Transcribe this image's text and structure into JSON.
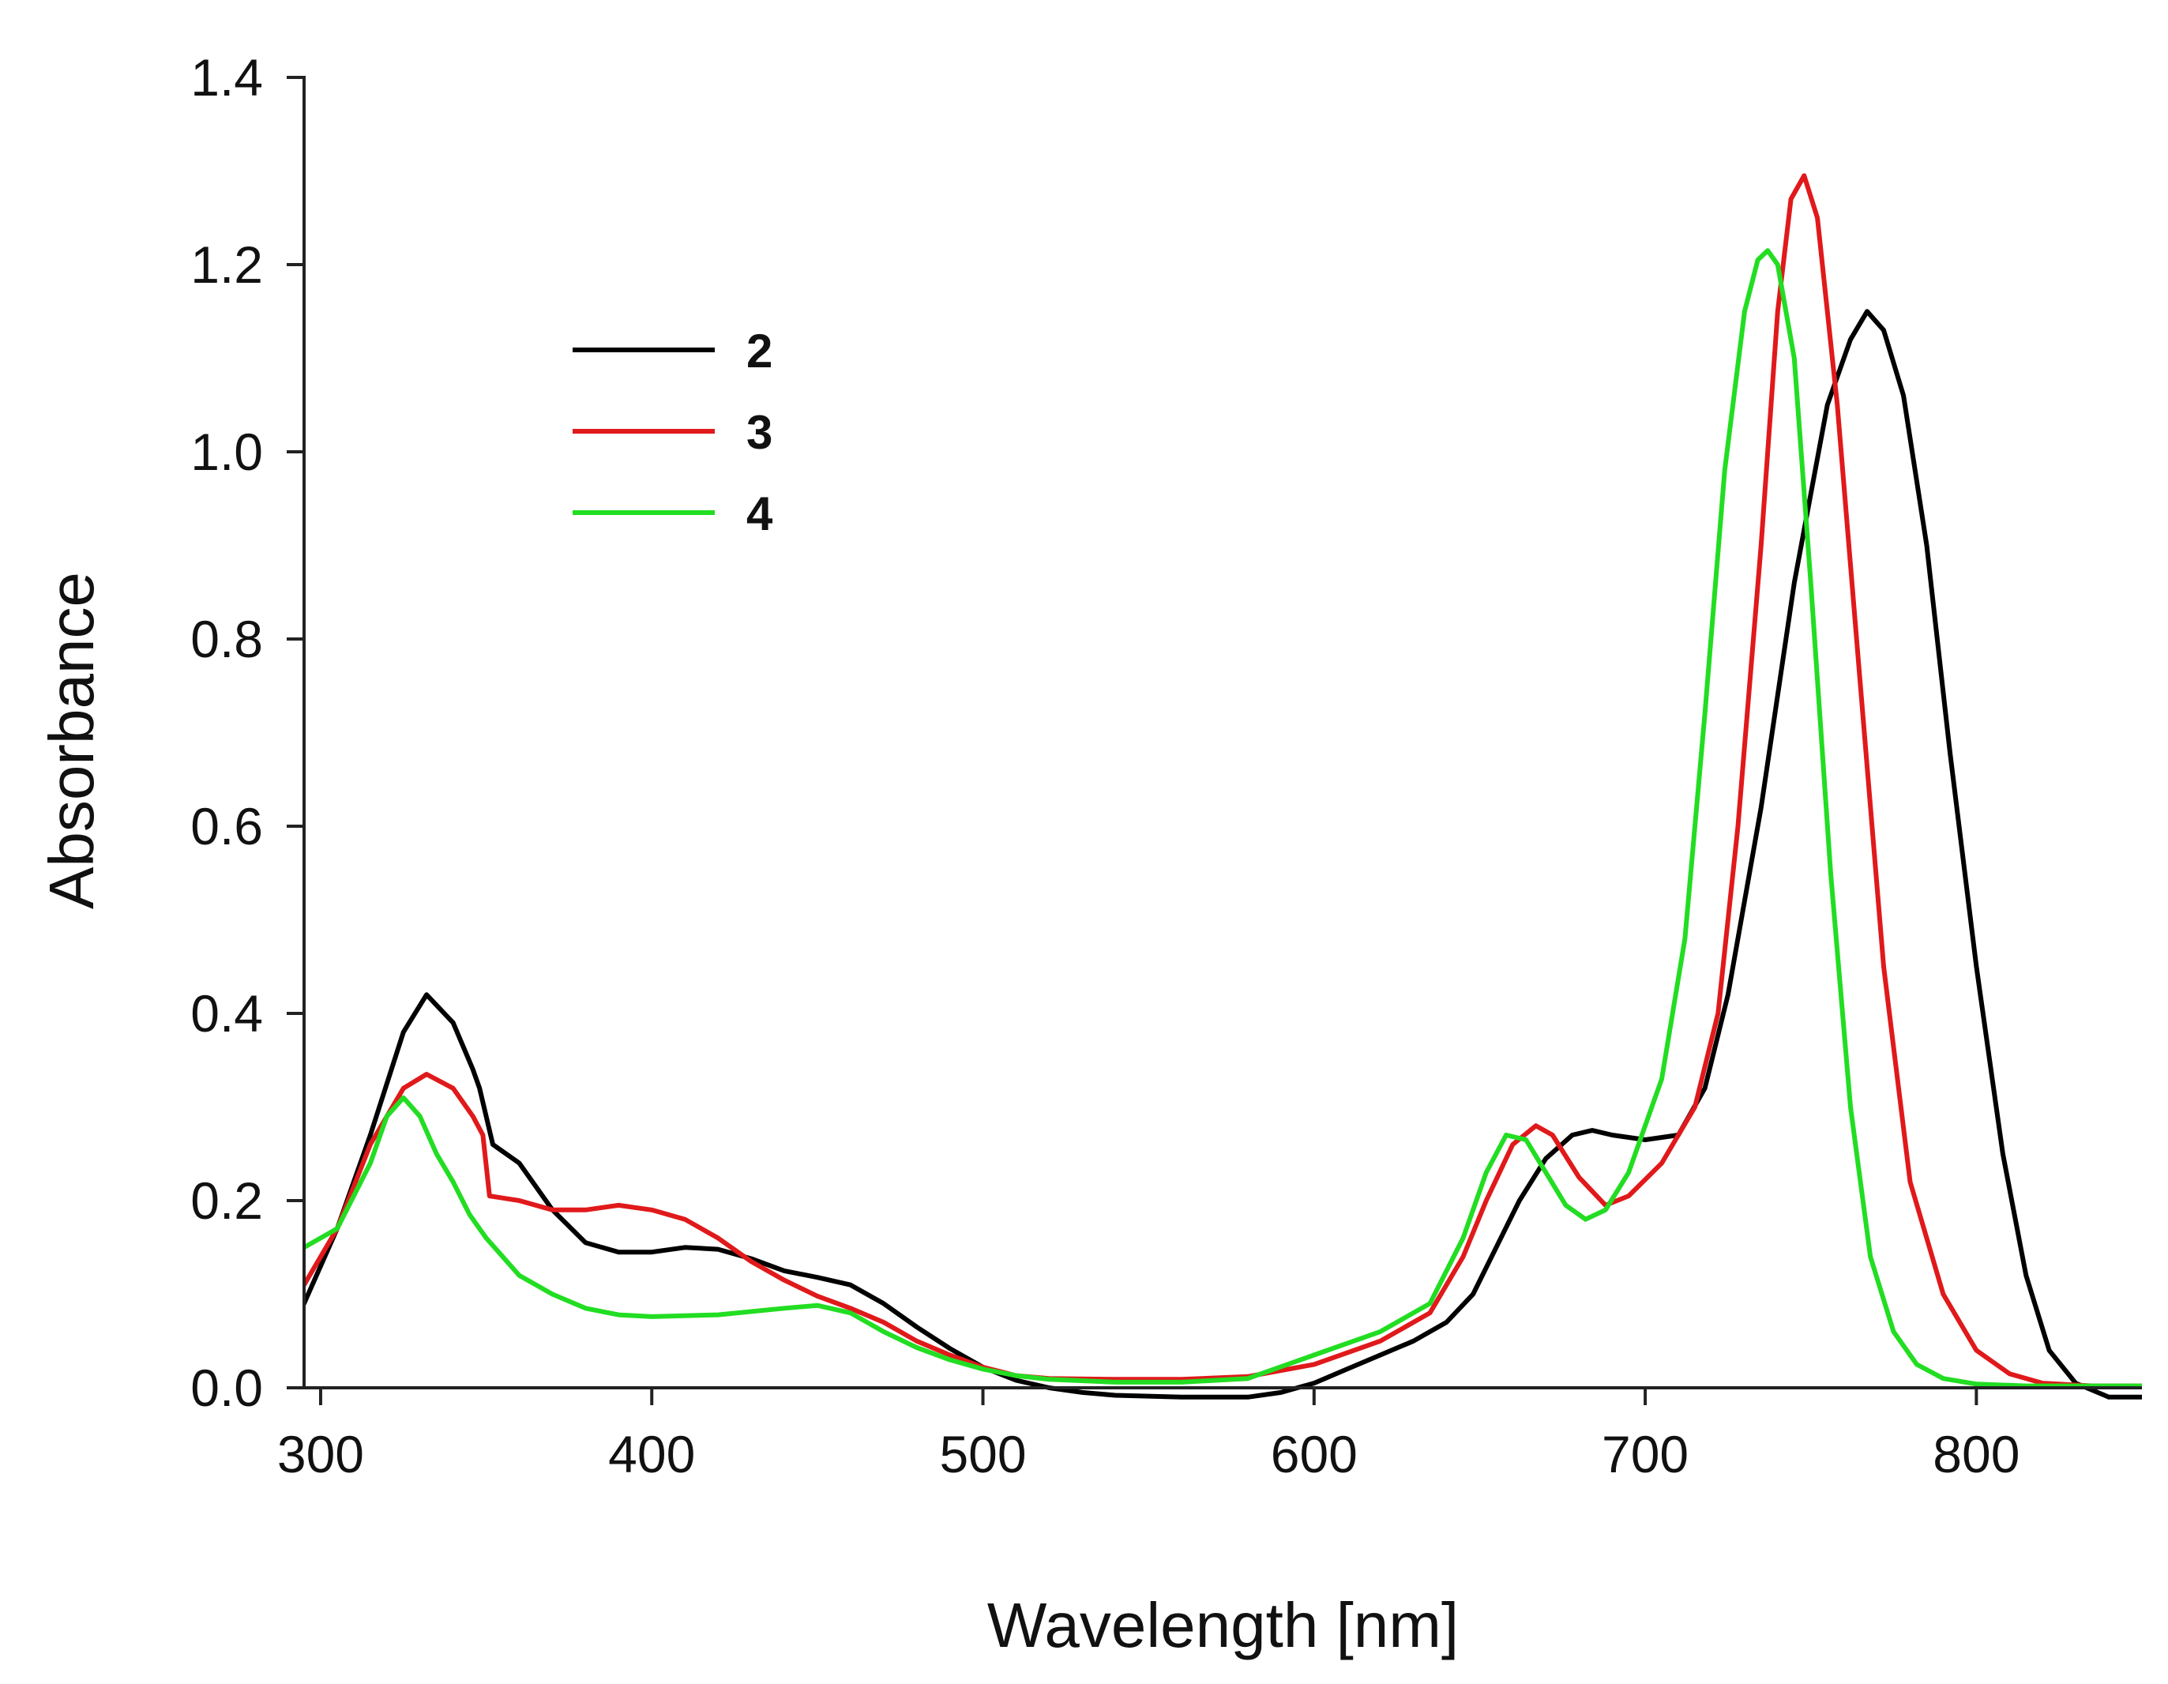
{
  "chart_data": {
    "type": "line",
    "title": "",
    "xlabel": "Wavelength [nm]",
    "ylabel": "Absorbance",
    "xlim": [
      295,
      850
    ],
    "ylim": [
      0.0,
      1.4
    ],
    "x_ticks": [
      300,
      400,
      500,
      600,
      700,
      800
    ],
    "x_tick_labels": [
      "300",
      "400",
      "500",
      "600",
      "700",
      "800"
    ],
    "y_ticks": [
      0.0,
      0.2,
      0.4,
      0.6,
      0.8,
      1.0,
      1.2,
      1.4
    ],
    "y_tick_labels": [
      "0.0",
      "0.2",
      "0.4",
      "0.6",
      "0.8",
      "1.0",
      "1.2",
      "1.4"
    ],
    "grid": false,
    "legend_position": "upper-left",
    "series": [
      {
        "name": "2",
        "color": "#000000",
        "x": [
          295,
          305,
          315,
          325,
          332,
          340,
          346,
          348,
          352,
          360,
          370,
          380,
          390,
          400,
          410,
          420,
          430,
          440,
          450,
          460,
          470,
          480,
          490,
          500,
          510,
          520,
          530,
          540,
          560,
          580,
          590,
          600,
          610,
          620,
          630,
          640,
          648,
          655,
          662,
          670,
          678,
          684,
          690,
          700,
          710,
          718,
          725,
          735,
          745,
          755,
          762,
          767,
          772,
          778,
          785,
          792,
          800,
          808,
          815,
          822,
          830,
          840,
          850
        ],
        "values": [
          0.09,
          0.17,
          0.27,
          0.38,
          0.42,
          0.39,
          0.34,
          0.32,
          0.26,
          0.24,
          0.19,
          0.155,
          0.145,
          0.145,
          0.15,
          0.148,
          0.138,
          0.125,
          0.118,
          0.11,
          0.09,
          0.065,
          0.042,
          0.022,
          0.008,
          0.0,
          -0.005,
          -0.008,
          -0.01,
          -0.01,
          -0.005,
          0.005,
          0.02,
          0.035,
          0.05,
          0.07,
          0.1,
          0.15,
          0.2,
          0.245,
          0.27,
          0.275,
          0.27,
          0.265,
          0.27,
          0.32,
          0.42,
          0.62,
          0.86,
          1.05,
          1.12,
          1.15,
          1.13,
          1.06,
          0.9,
          0.68,
          0.45,
          0.25,
          0.12,
          0.04,
          0.005,
          -0.01,
          -0.01
        ]
      },
      {
        "name": "3",
        "color": "#e0191b",
        "x": [
          295,
          305,
          315,
          325,
          332,
          340,
          346,
          349,
          351,
          360,
          370,
          380,
          390,
          400,
          410,
          420,
          430,
          440,
          450,
          460,
          470,
          480,
          490,
          500,
          510,
          520,
          540,
          560,
          580,
          600,
          620,
          635,
          645,
          652,
          660,
          667,
          672,
          680,
          688,
          695,
          705,
          715,
          722,
          728,
          735,
          740,
          744,
          748,
          752,
          758,
          765,
          772,
          780,
          790,
          800,
          810,
          820,
          835,
          850
        ],
        "values": [
          0.11,
          0.17,
          0.26,
          0.32,
          0.335,
          0.32,
          0.29,
          0.27,
          0.205,
          0.2,
          0.19,
          0.19,
          0.195,
          0.19,
          0.18,
          0.16,
          0.135,
          0.115,
          0.098,
          0.085,
          0.07,
          0.05,
          0.035,
          0.022,
          0.013,
          0.01,
          0.009,
          0.009,
          0.012,
          0.025,
          0.05,
          0.08,
          0.14,
          0.2,
          0.26,
          0.28,
          0.27,
          0.225,
          0.195,
          0.205,
          0.24,
          0.3,
          0.4,
          0.6,
          0.9,
          1.15,
          1.27,
          1.295,
          1.25,
          1.05,
          0.75,
          0.45,
          0.22,
          0.1,
          0.04,
          0.015,
          0.005,
          0.002,
          0.002
        ]
      },
      {
        "name": "4",
        "color": "#22dd22",
        "x": [
          295,
          305,
          315,
          320,
          325,
          330,
          335,
          340,
          345,
          350,
          355,
          360,
          370,
          380,
          390,
          400,
          420,
          440,
          450,
          460,
          470,
          480,
          490,
          500,
          510,
          520,
          540,
          560,
          580,
          600,
          620,
          635,
          645,
          652,
          658,
          664,
          670,
          676,
          682,
          688,
          695,
          705,
          712,
          718,
          724,
          730,
          734,
          737,
          740,
          745,
          750,
          756,
          762,
          768,
          775,
          782,
          790,
          800,
          815,
          830,
          850
        ],
        "values": [
          0.15,
          0.17,
          0.24,
          0.29,
          0.31,
          0.29,
          0.25,
          0.22,
          0.185,
          0.16,
          0.14,
          0.12,
          0.1,
          0.085,
          0.078,
          0.076,
          0.078,
          0.085,
          0.088,
          0.08,
          0.06,
          0.043,
          0.03,
          0.02,
          0.013,
          0.009,
          0.006,
          0.006,
          0.01,
          0.035,
          0.06,
          0.09,
          0.16,
          0.23,
          0.27,
          0.265,
          0.23,
          0.195,
          0.18,
          0.19,
          0.23,
          0.33,
          0.48,
          0.72,
          0.98,
          1.15,
          1.205,
          1.215,
          1.2,
          1.1,
          0.86,
          0.55,
          0.3,
          0.14,
          0.06,
          0.025,
          0.01,
          0.004,
          0.002,
          0.002,
          0.002
        ]
      }
    ]
  }
}
